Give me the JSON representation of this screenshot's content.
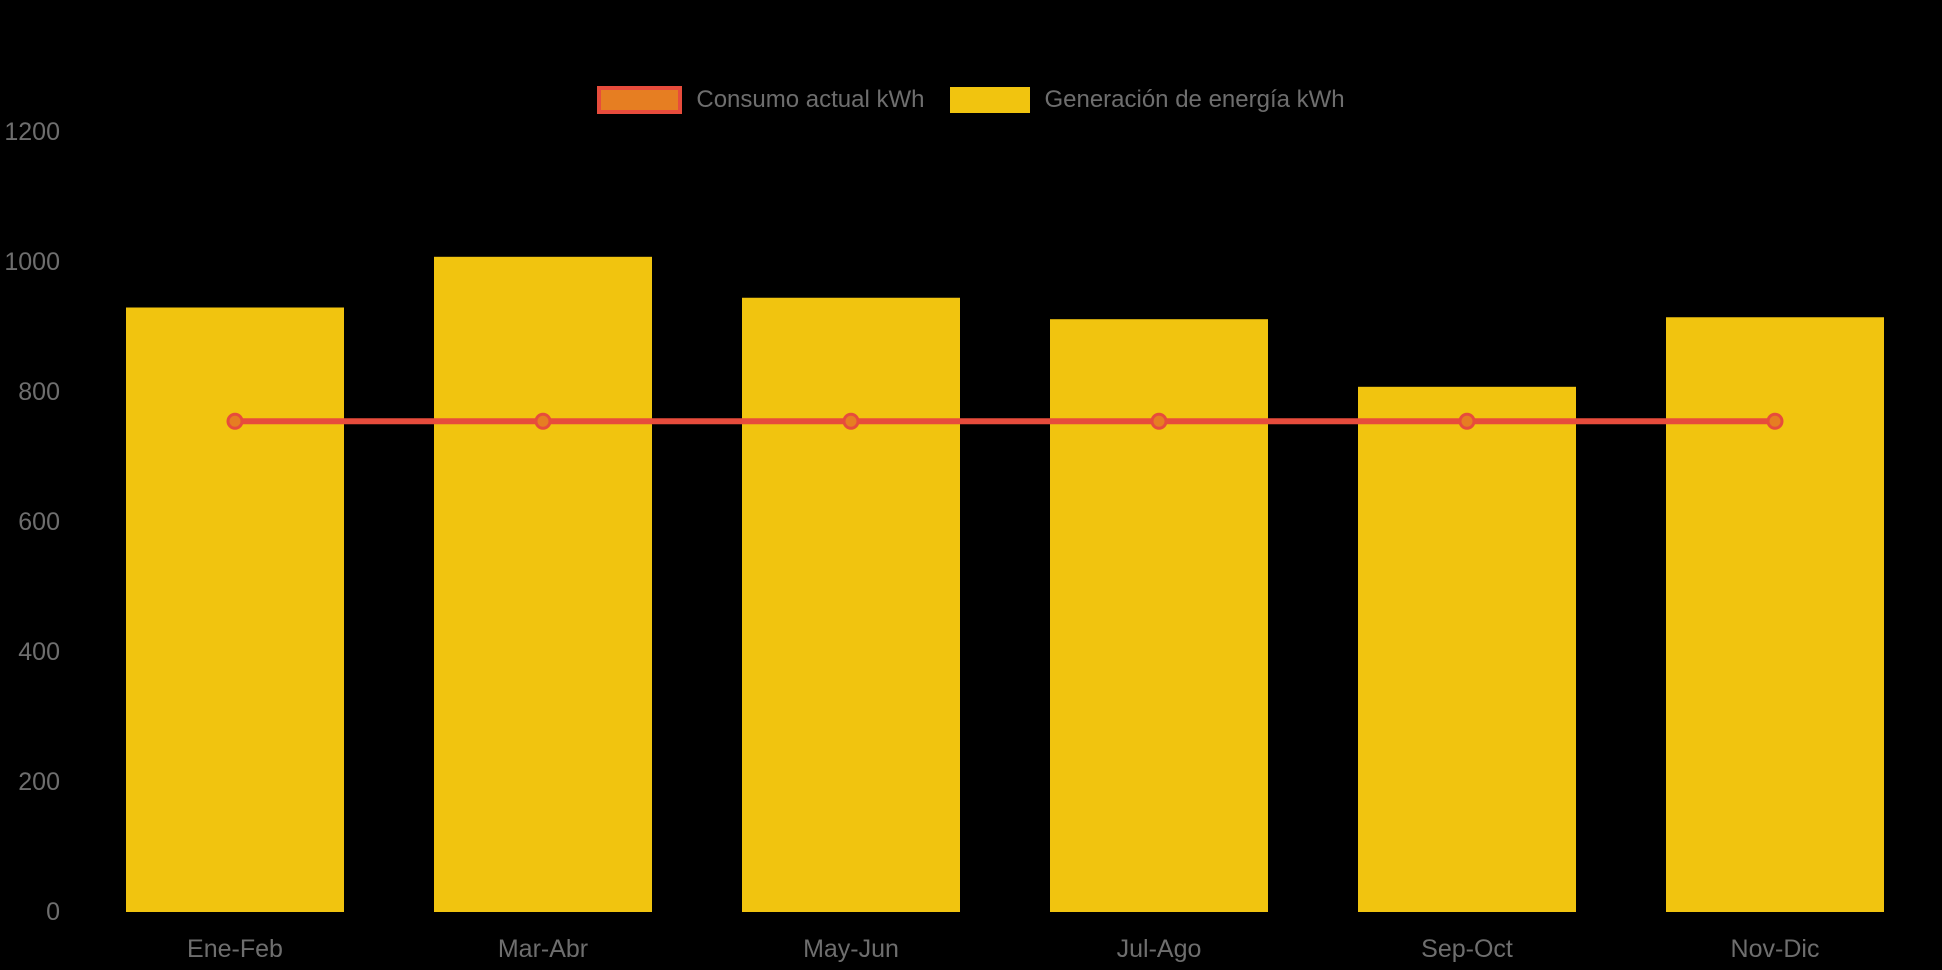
{
  "chart_data": {
    "type": "bar",
    "title": "",
    "xlabel": "",
    "ylabel": "",
    "categories": [
      "Ene-Feb",
      "Mar-Abr",
      "May-Jun",
      "Jul-Ago",
      "Sep-Oct",
      "Nov-Dic"
    ],
    "series": [
      {
        "name": "Consumo actual kWh",
        "type": "line",
        "values": [
          755,
          755,
          755,
          755,
          755,
          755
        ],
        "color": "#e74c3c",
        "marker_fill": "#e67e22"
      },
      {
        "name": "Generación de energía kWh",
        "type": "bar",
        "values": [
          930,
          1008,
          945,
          912,
          808,
          915
        ],
        "color": "#f1c40f"
      }
    ],
    "y_axis": {
      "ticks": [
        0,
        200,
        400,
        600,
        800,
        1000,
        1200
      ],
      "min": 0,
      "max": 1300
    },
    "ylim": [
      0,
      1300
    ],
    "grid": false,
    "legend_position": "top-center",
    "background_color": "#000000",
    "label_color": "#6e6e6e"
  }
}
